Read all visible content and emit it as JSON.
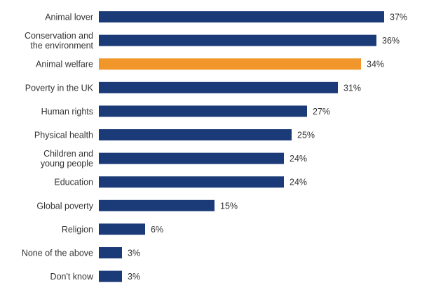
{
  "chart_data": {
    "type": "bar",
    "orientation": "horizontal",
    "title": "",
    "xlabel": "",
    "ylabel": "",
    "xlim": [
      0,
      40
    ],
    "grid": false,
    "value_suffix": "%",
    "colors": {
      "default": "#1b3a78",
      "highlight": "#f0962a"
    },
    "categories": [
      "Animal lover",
      "Conservation and the environment",
      "Animal welfare",
      "Poverty in the UK",
      "Human rights",
      "Physical health",
      "Children and young people",
      "Education",
      "Global poverty",
      "Religion",
      "None of the above",
      "Don't know"
    ],
    "category_lines": [
      [
        "Animal lover"
      ],
      [
        "Conservation and",
        "the environment"
      ],
      [
        "Animal welfare"
      ],
      [
        "Poverty in the UK"
      ],
      [
        "Human rights"
      ],
      [
        "Physical health"
      ],
      [
        "Children and",
        "young people"
      ],
      [
        "Education"
      ],
      [
        "Global poverty"
      ],
      [
        "Religion"
      ],
      [
        "None of the above"
      ],
      [
        "Don't know"
      ]
    ],
    "values": [
      37,
      36,
      34,
      31,
      27,
      25,
      24,
      24,
      15,
      6,
      3,
      3
    ],
    "value_labels": [
      "37%",
      "36%",
      "34%",
      "31%",
      "27%",
      "25%",
      "24%",
      "24%",
      "15%",
      "6%",
      "3%",
      "3%"
    ],
    "highlighted": [
      "Animal welfare"
    ]
  }
}
